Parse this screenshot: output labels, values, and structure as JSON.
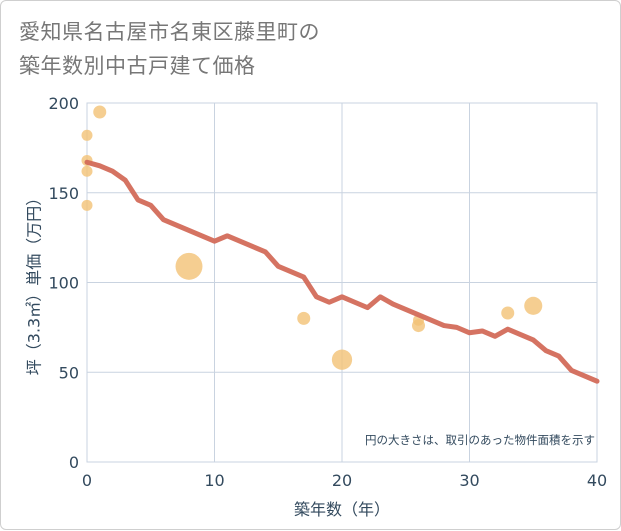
{
  "title": {
    "line1": "愛知県名古屋市名東区藤里町の",
    "line2": "築年数別中古戸建て価格"
  },
  "chart_data": {
    "type": "scatter",
    "xlabel": "築年数（年）",
    "ylabel": "坪（3.3㎡）単価（万円）",
    "xlim": [
      0,
      40
    ],
    "ylim": [
      0,
      200
    ],
    "xticks": [
      0,
      10,
      20,
      30,
      40
    ],
    "yticks": [
      0,
      50,
      100,
      150,
      200
    ],
    "note": "円の大きさは、取引のあった物件面積を示す",
    "colors": {
      "scatter": "#f3c276",
      "line": "#d36b5a",
      "grid": "#c9d3e0",
      "axis_text": "#334a5e"
    },
    "scatter": [
      {
        "x": 0,
        "y": 182,
        "size": 1
      },
      {
        "x": 0,
        "y": 168,
        "size": 1
      },
      {
        "x": 0,
        "y": 162,
        "size": 1
      },
      {
        "x": 0,
        "y": 143,
        "size": 1
      },
      {
        "x": 1,
        "y": 195,
        "size": 1.4
      },
      {
        "x": 8,
        "y": 109,
        "size": 6
      },
      {
        "x": 17,
        "y": 80,
        "size": 1.4
      },
      {
        "x": 20,
        "y": 57,
        "size": 3.4
      },
      {
        "x": 26,
        "y": 76,
        "size": 1.4
      },
      {
        "x": 26,
        "y": 79,
        "size": 1
      },
      {
        "x": 33,
        "y": 83,
        "size": 1.4
      },
      {
        "x": 35,
        "y": 87,
        "size": 2.7
      }
    ],
    "line": {
      "x": [
        0,
        1,
        2,
        3,
        4,
        5,
        6,
        7,
        8,
        9,
        10,
        11,
        12,
        13,
        14,
        15,
        16,
        17,
        18,
        19,
        20,
        21,
        22,
        23,
        24,
        25,
        26,
        27,
        28,
        29,
        30,
        31,
        32,
        33,
        34,
        35,
        36,
        37,
        38,
        39,
        40
      ],
      "y": [
        167,
        165,
        162,
        157,
        146,
        143,
        135,
        132,
        129,
        126,
        123,
        126,
        123,
        120,
        117,
        109,
        106,
        103,
        92,
        89,
        92,
        89,
        86,
        92,
        88,
        85,
        82,
        79,
        76,
        75,
        72,
        73,
        70,
        74,
        71,
        68,
        62,
        59,
        51,
        48,
        45
      ]
    }
  }
}
